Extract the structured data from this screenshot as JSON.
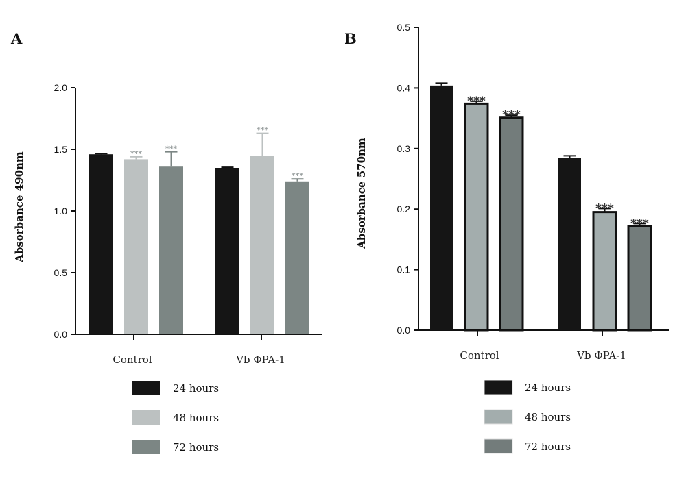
{
  "colors": {
    "h24": "#151515",
    "h48": "#bcc1c1",
    "h72": "#7c8684",
    "h48_b": "#a3adad",
    "h72_b": "#737c7b",
    "axis": "#111111",
    "sig_a": "#9aa0a0",
    "sig_b": "#333333"
  },
  "chart_data": [
    {
      "panel": "A",
      "type": "bar",
      "ylabel": "Absorbance 490nm",
      "xlabel": "",
      "ylim": [
        0,
        2.0
      ],
      "yticks": [
        "0.0",
        "0.5",
        "1.0",
        "1.5",
        "2.0"
      ],
      "categories": [
        "Control",
        "Vb  ΦPA-1"
      ],
      "series": [
        {
          "name": "24 hours",
          "values": [
            1.46,
            1.35
          ],
          "errors": [
            0.005,
            0.005
          ],
          "sig": [
            "",
            ""
          ]
        },
        {
          "name": "48 hours",
          "values": [
            1.42,
            1.45
          ],
          "errors": [
            0.02,
            0.18
          ],
          "sig": [
            "***",
            "***"
          ]
        },
        {
          "name": "72 hours",
          "values": [
            1.36,
            1.24
          ],
          "errors": [
            0.12,
            0.02
          ],
          "sig": [
            "***",
            "***"
          ]
        }
      ],
      "grid": false,
      "legend_position": "bottom"
    },
    {
      "panel": "B",
      "type": "bar",
      "ylabel": "Absorbance 570nm",
      "xlabel": "",
      "ylim": [
        0,
        0.5
      ],
      "yticks": [
        "0.0",
        "0.1",
        "0.2",
        "0.3",
        "0.4",
        "0.5"
      ],
      "categories": [
        "Control",
        "Vb  ΦPA-1"
      ],
      "series": [
        {
          "name": "24 hours",
          "values": [
            0.404,
            0.284
          ],
          "errors": [
            0.004,
            0.004
          ],
          "sig": [
            "",
            ""
          ]
        },
        {
          "name": "48 hours",
          "values": [
            0.374,
            0.195
          ],
          "errors": [
            0.004,
            0.006
          ],
          "sig": [
            "***",
            "***"
          ]
        },
        {
          "name": "72 hours",
          "values": [
            0.351,
            0.172
          ],
          "errors": [
            0.004,
            0.004
          ],
          "sig": [
            "***",
            "***"
          ]
        }
      ],
      "grid": false,
      "legend_position": "bottom"
    }
  ]
}
